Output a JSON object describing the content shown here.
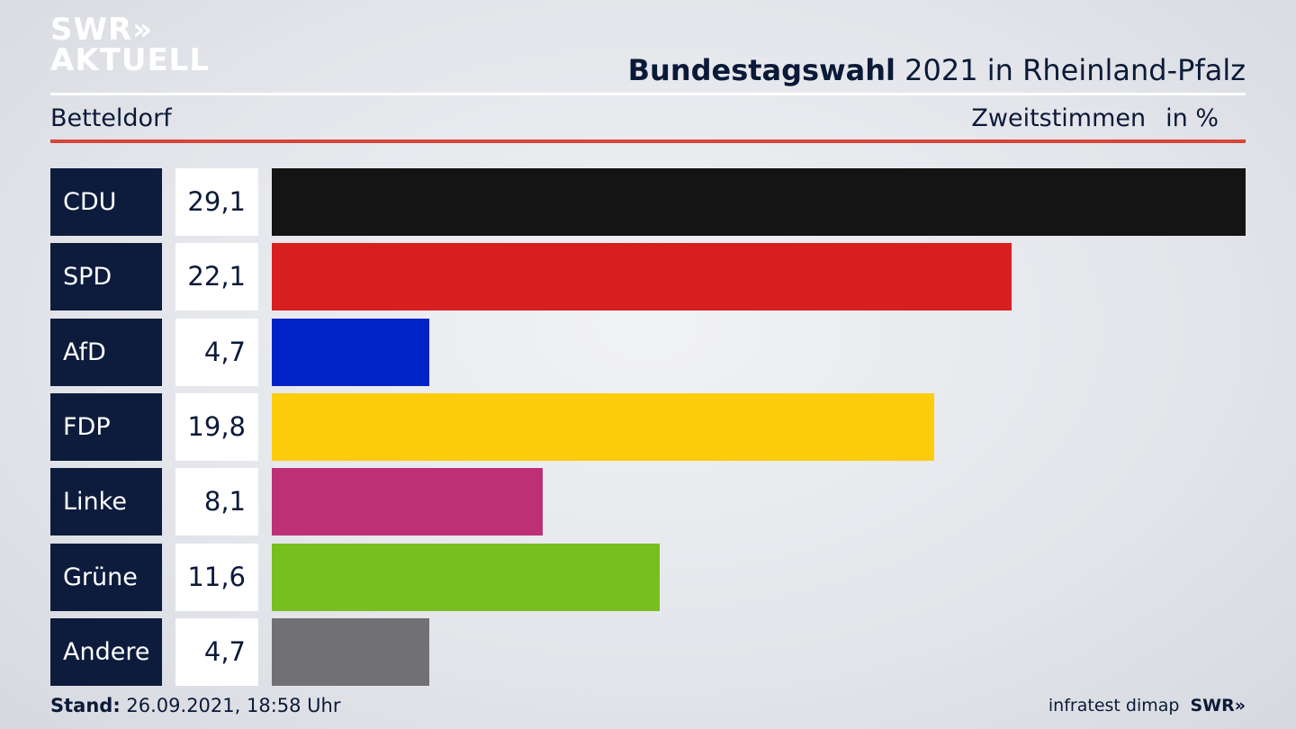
{
  "logo": {
    "line1": "SWR»",
    "line2": "AKTUELL"
  },
  "header": {
    "title_bold": "Bundestagswahl",
    "title_rest": " 2021 in Rheinland-Pfalz",
    "subtitle": "Betteldorf",
    "measure": "Zweitstimmen",
    "unit": "in %"
  },
  "colors": {
    "background": "#e3e5ea",
    "label_box": "#0d1c3d",
    "rule_red": "#d8453a"
  },
  "chart_data": {
    "type": "bar",
    "orientation": "horizontal",
    "title": "Bundestagswahl 2021 in Rheinland-Pfalz",
    "subtitle": "Betteldorf",
    "categories": [
      "CDU",
      "SPD",
      "AfD",
      "FDP",
      "Linke",
      "Grüne",
      "Andere"
    ],
    "values": [
      29.1,
      22.1,
      4.7,
      19.8,
      8.1,
      11.6,
      4.7
    ],
    "value_labels": [
      "29,1",
      "22,1",
      "4,7",
      "19,8",
      "8,1",
      "11,6",
      "4,7"
    ],
    "colors": [
      "#141414",
      "#d81f1f",
      "#0023c8",
      "#fdcc0c",
      "#bd3075",
      "#78be1e",
      "#717173"
    ],
    "xlim": [
      0,
      29.1
    ]
  },
  "footer": {
    "stand_label": "Stand:",
    "stand_value": " 26.09.2021, 18:58 Uhr",
    "source": "infratest dimap",
    "brand": "SWR»"
  }
}
